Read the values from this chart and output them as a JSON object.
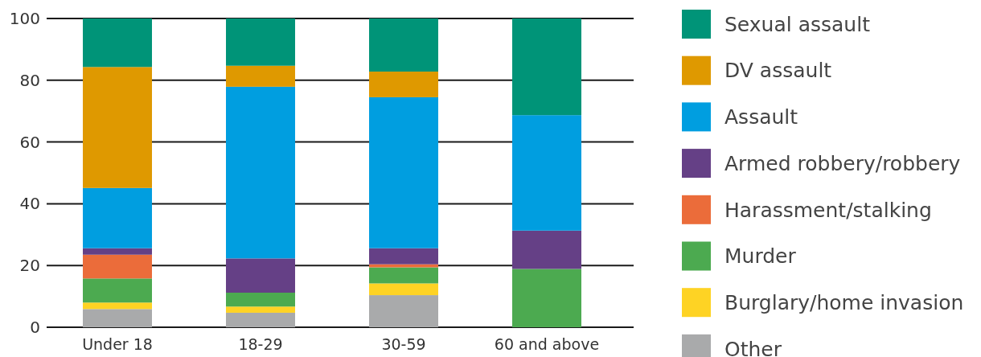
{
  "chart_data": {
    "type": "bar",
    "stacked": true,
    "categories": [
      "Under 18",
      "18-29",
      "30-59",
      "60 and above"
    ],
    "series": [
      {
        "name": "Other",
        "color": "#a9aaab",
        "values": [
          5.9,
          4.7,
          10.4,
          0
        ]
      },
      {
        "name": "Burglary/home invasion",
        "color": "#fed324",
        "values": [
          2.1,
          2.0,
          3.8,
          0
        ]
      },
      {
        "name": "Murder",
        "color": "#4caa50",
        "values": [
          7.8,
          4.5,
          5.2,
          18.9
        ]
      },
      {
        "name": "Harassment/stalking",
        "color": "#eb6c3a",
        "values": [
          7.7,
          0,
          1.0,
          0
        ]
      },
      {
        "name": "Armed robbery/robbery",
        "color": "#654086",
        "values": [
          2.1,
          11.1,
          5.2,
          12.4
        ]
      },
      {
        "name": "Assault",
        "color": "#009ee0",
        "values": [
          19.5,
          55.6,
          48.9,
          37.4
        ]
      },
      {
        "name": "DV assault",
        "color": "#df9900",
        "values": [
          39.2,
          6.8,
          8.3,
          0
        ]
      },
      {
        "name": "Sexual assault",
        "color": "#009478",
        "values": [
          15.7,
          15.3,
          17.2,
          31.3
        ]
      }
    ],
    "ylim": [
      0,
      100
    ],
    "yticks": [
      0,
      20,
      40,
      60,
      80,
      100
    ],
    "grid": "y",
    "legend": "right"
  }
}
